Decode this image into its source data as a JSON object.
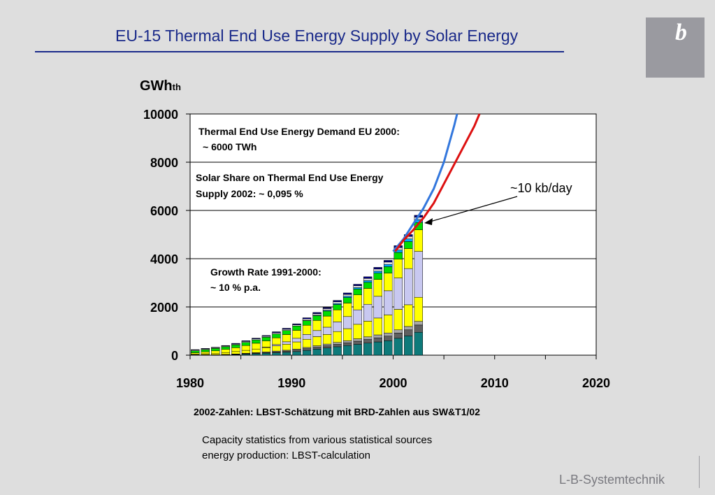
{
  "slide": {
    "title": "EU-15 Thermal End Use Energy Supply by Solar Energy",
    "source_note": "2002-Zahlen: LBST-Schätzung mit BRD-Zahlen aus SW&T1/02",
    "caption_line1": "Capacity statistics from various statistical sources",
    "caption_line2": "energy production: LBST-calculation",
    "footer": "L-B-Systemtechnik",
    "logo_letter": "b"
  },
  "chart_data": {
    "type": "bar",
    "stacked": true,
    "ylabel": "GWh",
    "ylabel_sub": "th",
    "xlim": [
      1980,
      2020
    ],
    "ylim": [
      0,
      10000
    ],
    "xticks": [
      1980,
      1990,
      2000,
      2010,
      2020
    ],
    "yticks": [
      0,
      2000,
      4000,
      6000,
      8000,
      10000
    ],
    "grid": "horizontal",
    "x": [
      1980,
      1981,
      1982,
      1983,
      1984,
      1985,
      1986,
      1987,
      1988,
      1989,
      1990,
      1991,
      1992,
      1993,
      1994,
      1995,
      1996,
      1997,
      1998,
      1999,
      2000,
      2001,
      2002
    ],
    "series": [
      {
        "color": "#0e7a7a",
        "values": [
          0,
          0,
          0,
          10,
          20,
          40,
          60,
          80,
          100,
          120,
          150,
          200,
          250,
          300,
          350,
          400,
          450,
          500,
          550,
          600,
          700,
          800,
          950
        ]
      },
      {
        "color": "#606060",
        "values": [
          10,
          10,
          10,
          10,
          15,
          20,
          25,
          30,
          40,
          50,
          60,
          70,
          80,
          90,
          100,
          110,
          130,
          150,
          170,
          190,
          220,
          250,
          300
        ]
      },
      {
        "color": "#a8a8a8",
        "values": [
          10,
          10,
          10,
          10,
          15,
          20,
          20,
          25,
          30,
          35,
          40,
          50,
          60,
          70,
          80,
          90,
          100,
          110,
          120,
          130,
          130,
          140,
          150
        ]
      },
      {
        "color": "#ffff00",
        "values": [
          20,
          40,
          60,
          80,
          100,
          120,
          150,
          180,
          220,
          250,
          300,
          340,
          380,
          400,
          450,
          500,
          600,
          650,
          700,
          750,
          850,
          900,
          1000
        ]
      },
      {
        "color": "#c8c8f0",
        "values": [
          0,
          0,
          0,
          0,
          0,
          0,
          0,
          20,
          50,
          100,
          150,
          200,
          250,
          300,
          400,
          500,
          600,
          700,
          900,
          1000,
          1300,
          1500,
          1900
        ]
      },
      {
        "color": "#ffff00",
        "values": [
          60,
          80,
          100,
          130,
          160,
          200,
          240,
          260,
          280,
          300,
          330,
          380,
          420,
          460,
          500,
          560,
          620,
          660,
          700,
          730,
          780,
          830,
          900
        ]
      },
      {
        "color": "#00dd00",
        "values": [
          80,
          90,
          100,
          110,
          120,
          130,
          140,
          150,
          160,
          170,
          180,
          190,
          200,
          210,
          220,
          230,
          240,
          250,
          260,
          270,
          280,
          290,
          300
        ]
      },
      {
        "color": "#00aaff",
        "values": [
          0,
          0,
          0,
          0,
          0,
          0,
          0,
          0,
          0,
          0,
          0,
          10,
          20,
          30,
          40,
          50,
          60,
          70,
          80,
          90,
          100,
          110,
          120
        ]
      },
      {
        "color": "#e0e0e0",
        "values": [
          30,
          30,
          30,
          30,
          30,
          40,
          40,
          40,
          50,
          50,
          50,
          60,
          60,
          70,
          70,
          80,
          80,
          90,
          90,
          100,
          100,
          100,
          100
        ]
      },
      {
        "color": "#000080",
        "values": [
          20,
          20,
          20,
          20,
          30,
          30,
          30,
          30,
          40,
          40,
          40,
          50,
          50,
          50,
          60,
          60,
          60,
          70,
          70,
          70,
          80,
          80,
          80
        ]
      }
    ],
    "projections": [
      {
        "color": "#3377dd",
        "points": [
          [
            2000,
            4300
          ],
          [
            2001,
            4800
          ],
          [
            2002,
            5450
          ],
          [
            2003,
            6100
          ],
          [
            2004,
            6900
          ],
          [
            2005,
            8000
          ],
          [
            2006,
            9500
          ],
          [
            2006.3,
            10000
          ]
        ]
      },
      {
        "color": "#dd1111",
        "points": [
          [
            2000.2,
            4300
          ],
          [
            2001,
            4750
          ],
          [
            2002,
            5200
          ],
          [
            2003,
            5700
          ],
          [
            2004,
            6300
          ],
          [
            2005,
            7100
          ],
          [
            2006,
            7900
          ],
          [
            2007,
            8700
          ],
          [
            2008,
            9500
          ],
          [
            2008.5,
            10000
          ]
        ]
      }
    ],
    "annotations": {
      "demand_line1": "Thermal End Use Energy Demand EU 2000:",
      "demand_line2": "~ 6000 TWh",
      "share_line1": "Solar Share on Thermal End Use Energy",
      "share_line2": "Supply 2002: ~ 0,095 %",
      "growth_line1": "Growth Rate 1991-2000:",
      "growth_line2": "~ 10 % p.a.",
      "callout": "~10 kb/day"
    }
  }
}
